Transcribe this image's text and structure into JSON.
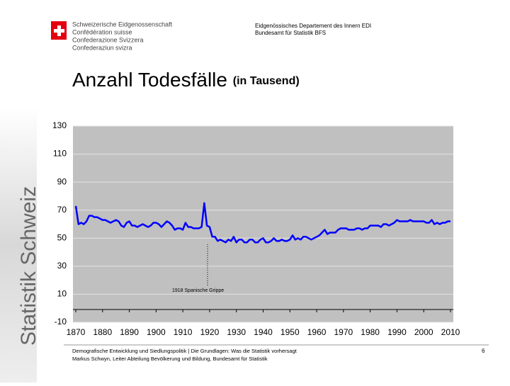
{
  "header": {
    "confederation": [
      "Schweizerische Eidgenossenschaft",
      "Confédération suisse",
      "Confederazione Svizzera",
      "Confederaziun svizra"
    ],
    "department": [
      "Eidgenössisches Departement des Innern EDI",
      "Bundesamt für Statistik BFS"
    ]
  },
  "side_label": "Statistik Schweiz",
  "chart_data": {
    "type": "line",
    "title": "Anzahl Todesfälle",
    "subtitle": "(in Tausend)",
    "annotation": "1918 Spanische Grippe",
    "x": [
      1870,
      1871,
      1872,
      1873,
      1874,
      1875,
      1876,
      1877,
      1878,
      1879,
      1880,
      1881,
      1882,
      1883,
      1884,
      1885,
      1886,
      1887,
      1888,
      1889,
      1890,
      1891,
      1892,
      1893,
      1894,
      1895,
      1896,
      1897,
      1898,
      1899,
      1900,
      1901,
      1902,
      1903,
      1904,
      1905,
      1906,
      1907,
      1908,
      1909,
      1910,
      1911,
      1912,
      1913,
      1914,
      1915,
      1916,
      1917,
      1918,
      1919,
      1920,
      1921,
      1922,
      1923,
      1924,
      1925,
      1926,
      1927,
      1928,
      1929,
      1930,
      1931,
      1932,
      1933,
      1934,
      1935,
      1936,
      1937,
      1938,
      1939,
      1940,
      1941,
      1942,
      1943,
      1944,
      1945,
      1946,
      1947,
      1948,
      1949,
      1950,
      1951,
      1952,
      1953,
      1954,
      1955,
      1956,
      1957,
      1958,
      1959,
      1960,
      1961,
      1962,
      1963,
      1964,
      1965,
      1966,
      1967,
      1968,
      1969,
      1970,
      1971,
      1972,
      1973,
      1974,
      1975,
      1976,
      1977,
      1978,
      1979,
      1980,
      1981,
      1982,
      1983,
      1984,
      1985,
      1986,
      1987,
      1988,
      1989,
      1990,
      1991,
      1992,
      1993,
      1994,
      1995,
      1996,
      1997,
      1998,
      1999,
      2000,
      2001,
      2002,
      2003,
      2004,
      2005,
      2006,
      2007,
      2008,
      2009,
      2010
    ],
    "series": [
      {
        "color": "#0000ff",
        "values": [
          73,
          60,
          61,
          60,
          62,
          66,
          66,
          65,
          65,
          64,
          63,
          63,
          62,
          61,
          62,
          63,
          62,
          59,
          58,
          61,
          62,
          59,
          59,
          58,
          59,
          60,
          59,
          58,
          59,
          61,
          61,
          60,
          58,
          60,
          62,
          61,
          59,
          56,
          57,
          57,
          56,
          61,
          58,
          58,
          57,
          57,
          57,
          58,
          75,
          59,
          58,
          51,
          51,
          48,
          49,
          48,
          47,
          49,
          48,
          51,
          47,
          49,
          49,
          47,
          47,
          49,
          49,
          47,
          47,
          49,
          50,
          47,
          47,
          48,
          50,
          48,
          48,
          49,
          48,
          48,
          49,
          52,
          49,
          50,
          49,
          51,
          51,
          50,
          49,
          50,
          51,
          52,
          54,
          56,
          53,
          54,
          54,
          54,
          56,
          57,
          57,
          57,
          56,
          56,
          56,
          57,
          57,
          56,
          57,
          57,
          59,
          59,
          59,
          59,
          58,
          60,
          60,
          59,
          60,
          61,
          63,
          62,
          62,
          62,
          62,
          63,
          62,
          62,
          62,
          62,
          62,
          61,
          61,
          63,
          60,
          61,
          60,
          61,
          61,
          62,
          62
        ]
      }
    ],
    "xlim": [
      1870,
      2010
    ],
    "xticks": [
      1870,
      1880,
      1890,
      1900,
      1910,
      1920,
      1930,
      1940,
      1950,
      1960,
      1970,
      1980,
      1990,
      2000,
      2010
    ],
    "ylim": [
      -10,
      130
    ],
    "yticks": [
      -10,
      10,
      30,
      50,
      70,
      90,
      110,
      130
    ],
    "grid": true
  },
  "footer": {
    "lines": [
      "Demografische Entwicklung und Siedlungspolitik | Die Grundlagen: Was die Statistik vorhersagt",
      "Markus Schwyn, Leiter Abteilung Bevölkerung und Bildung, Bundesamt für Statistik"
    ],
    "page": "6"
  }
}
